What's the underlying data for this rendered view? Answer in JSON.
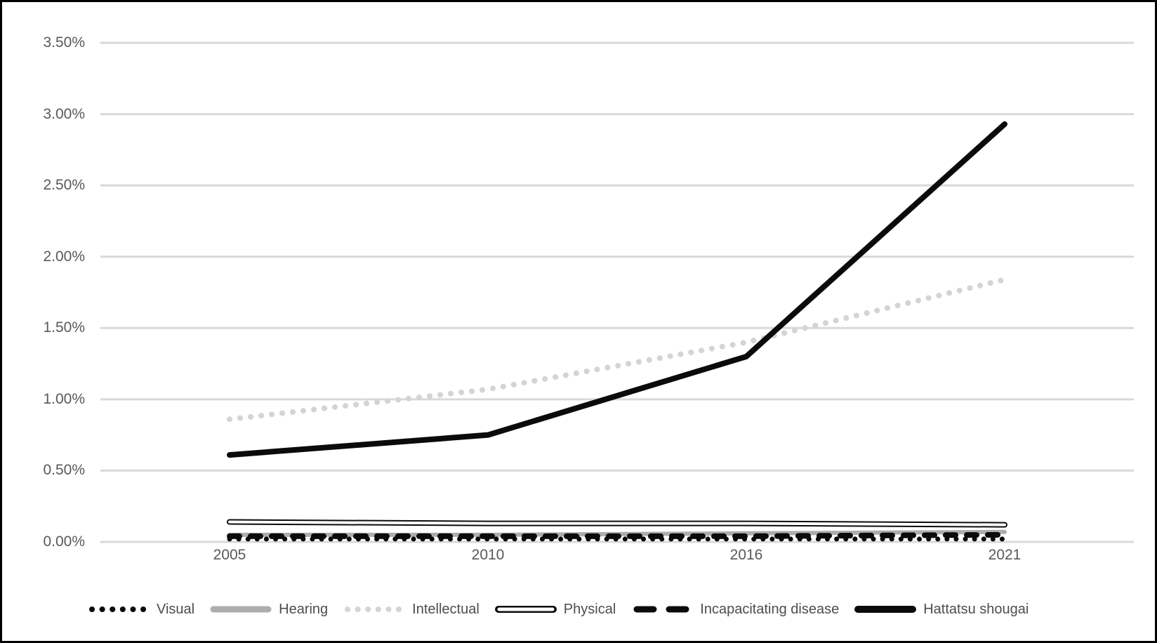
{
  "chart_data": {
    "type": "line",
    "title": "",
    "xlabel": "",
    "ylabel": "",
    "categories": [
      "2005",
      "2010",
      "2016",
      "2021"
    ],
    "series": [
      {
        "name": "Visual",
        "values": [
          0.02,
          0.02,
          0.02,
          0.02
        ],
        "unit": "%",
        "color": "#0b0b0b",
        "style": "dot",
        "width": 7
      },
      {
        "name": "Hearing",
        "values": [
          0.05,
          0.05,
          0.06,
          0.07
        ],
        "unit": "%",
        "color": "#adadad",
        "style": "solid",
        "width": 6
      },
      {
        "name": "Intellectual",
        "values": [
          0.86,
          1.07,
          1.4,
          1.84
        ],
        "unit": "%",
        "color": "#d4d4d4",
        "style": "dot",
        "width": 8
      },
      {
        "name": "Physical",
        "values": [
          0.14,
          0.13,
          0.13,
          0.12
        ],
        "unit": "%",
        "color": "#0b0b0b",
        "style": "double",
        "width": 8
      },
      {
        "name": "Incapacitating disease",
        "values": [
          0.04,
          0.04,
          0.04,
          0.05
        ],
        "unit": "%",
        "color": "#0b0b0b",
        "style": "dash",
        "width": 8
      },
      {
        "name": "Hattatsu shougai",
        "values": [
          0.61,
          0.75,
          1.3,
          2.93
        ],
        "unit": "%",
        "color": "#0b0b0b",
        "style": "solid",
        "width": 8
      }
    ],
    "y_ticks": [
      "3.50%",
      "3.00%",
      "2.50%",
      "2.00%",
      "1.50%",
      "1.00%",
      "0.50%",
      "0.00%"
    ],
    "ylim": [
      0,
      3.5
    ],
    "y_step": 0.5,
    "grid": true,
    "gridline_color": "#d9d9d9",
    "axis_label_color": "#595959",
    "legend_text_color": "#4d4d4d",
    "legend_position": "bottom"
  }
}
